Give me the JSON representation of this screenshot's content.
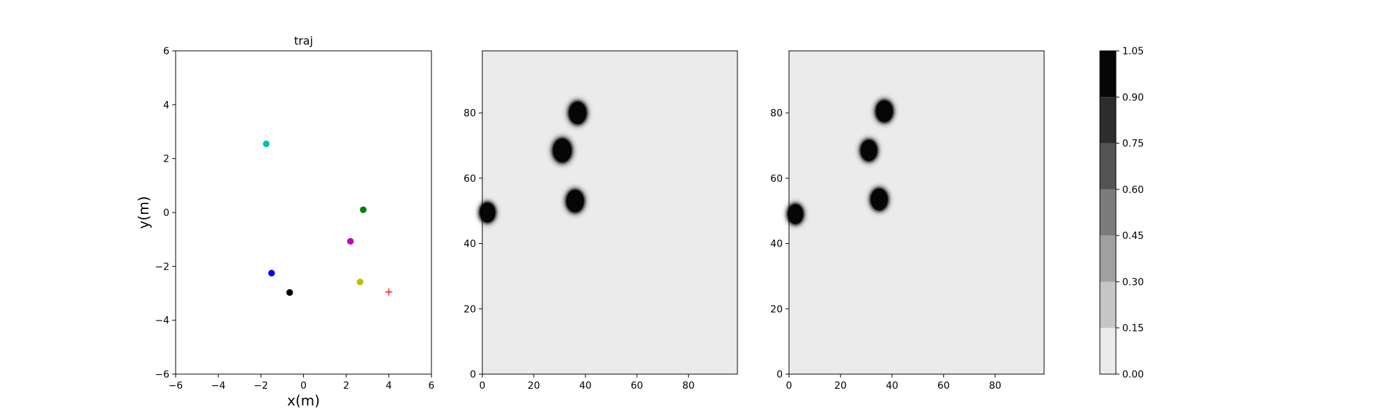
{
  "chart_data": [
    {
      "type": "scatter",
      "title": "traj",
      "xlabel": "x(m)",
      "ylabel": "y(m)",
      "xlim": [
        -6,
        6
      ],
      "ylim": [
        -6,
        6
      ],
      "xticks": [
        -6,
        -4,
        -2,
        0,
        2,
        4,
        6
      ],
      "yticks": [
        -6,
        -4,
        -2,
        0,
        2,
        4,
        6
      ],
      "grid": false,
      "points": [
        {
          "x": -1.75,
          "y": 2.55,
          "color": "#00bfbf",
          "marker": "circle"
        },
        {
          "x": 2.8,
          "y": 0.1,
          "color": "#008000",
          "marker": "circle"
        },
        {
          "x": 2.2,
          "y": -1.07,
          "color": "#bf00bf",
          "marker": "circle"
        },
        {
          "x": -1.5,
          "y": -2.25,
          "color": "#0000ff",
          "marker": "circle"
        },
        {
          "x": -0.65,
          "y": -2.97,
          "color": "#000000",
          "marker": "circle"
        },
        {
          "x": 2.65,
          "y": -2.58,
          "color": "#bfbf00",
          "marker": "circle"
        },
        {
          "x": 4.0,
          "y": -2.95,
          "color": "#ff0000",
          "marker": "plus"
        }
      ]
    },
    {
      "type": "heatmap",
      "xlim": [
        0,
        99
      ],
      "ylim": [
        0,
        99
      ],
      "xticks": [
        0,
        20,
        40,
        60,
        80
      ],
      "yticks": [
        0,
        20,
        40,
        60,
        80
      ],
      "background_level": 0.0,
      "blobs": [
        {
          "x": 37,
          "y": 80,
          "r": 3.6,
          "level": 1.0
        },
        {
          "x": 31,
          "y": 68.5,
          "r": 3.8,
          "level": 1.0
        },
        {
          "x": 36,
          "y": 53,
          "r": 3.6,
          "level": 1.0
        },
        {
          "x": 2,
          "y": 49.5,
          "r": 3.2,
          "level": 1.0
        }
      ]
    },
    {
      "type": "heatmap",
      "xlim": [
        0,
        99
      ],
      "ylim": [
        0,
        99
      ],
      "xticks": [
        0,
        20,
        40,
        60,
        80
      ],
      "yticks": [
        0,
        20,
        40,
        60,
        80
      ],
      "background_level": 0.0,
      "blobs": [
        {
          "x": 37,
          "y": 80.5,
          "r": 3.5,
          "level": 1.0
        },
        {
          "x": 31,
          "y": 68.5,
          "r": 3.4,
          "level": 1.0
        },
        {
          "x": 35,
          "y": 53.5,
          "r": 3.5,
          "level": 1.0
        },
        {
          "x": 2.5,
          "y": 49,
          "r": 3.2,
          "level": 1.0
        }
      ]
    }
  ],
  "colorbar": {
    "ticks": [
      "0.00",
      "0.15",
      "0.30",
      "0.45",
      "0.60",
      "0.75",
      "0.90",
      "1.05"
    ],
    "levels": [
      0.0,
      0.15,
      0.3,
      0.45,
      0.6,
      0.75,
      0.9,
      1.05
    ],
    "colors": [
      "#ebebeb",
      "#c6c6c6",
      "#a0a0a0",
      "#7b7b7b",
      "#545454",
      "#2d2d2d",
      "#060606"
    ]
  }
}
